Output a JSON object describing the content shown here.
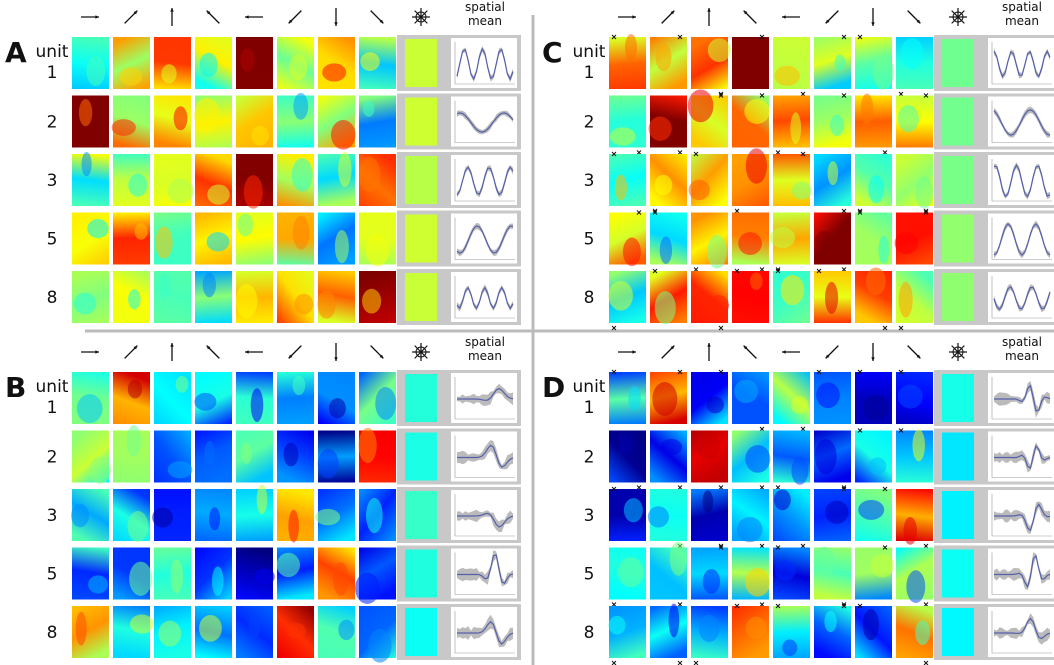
{
  "panels": [
    {
      "label": "A",
      "row_header": "unit",
      "rows": [
        "1",
        "2",
        "3",
        "5",
        "8"
      ],
      "column_header": [
        "spatial",
        "mean"
      ]
    },
    {
      "label": "B",
      "row_header": "unit",
      "rows": [
        "1",
        "2",
        "3",
        "5",
        "8"
      ],
      "column_header": [
        "spatial",
        "mean"
      ]
    },
    {
      "label": "C",
      "row_header": "unit",
      "rows": [
        "1",
        "2",
        "3",
        "5",
        "8"
      ],
      "column_header": [
        "spatial",
        "mean"
      ]
    },
    {
      "label": "D",
      "row_header": "unit",
      "rows": [
        "1",
        "2",
        "3",
        "5",
        "8"
      ],
      "column_header": [
        "spatial",
        "mean"
      ]
    }
  ]
}
